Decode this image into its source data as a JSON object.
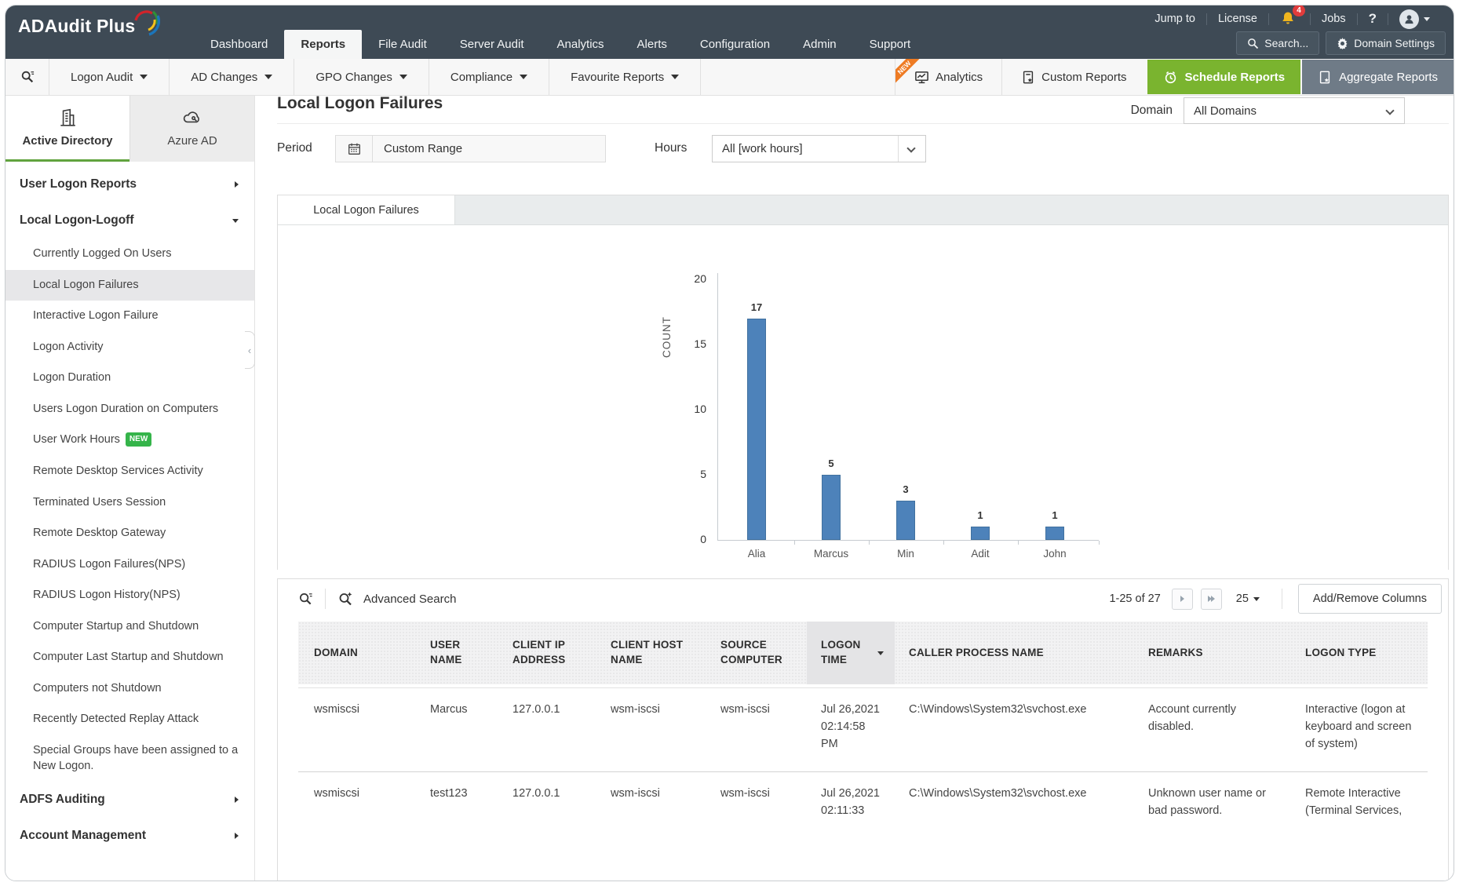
{
  "topbar": {
    "brand": "ADAudit Plus",
    "jump_to": "Jump to",
    "license": "License",
    "bell_badge": "4",
    "jobs": "Jobs",
    "help": "?",
    "nav": [
      {
        "label": "Dashboard",
        "active": false
      },
      {
        "label": "Reports",
        "active": true
      },
      {
        "label": "File Audit",
        "active": false
      },
      {
        "label": "Server Audit",
        "active": false
      },
      {
        "label": "Analytics",
        "active": false
      },
      {
        "label": "Alerts",
        "active": false
      },
      {
        "label": "Configuration",
        "active": false
      },
      {
        "label": "Admin",
        "active": false
      },
      {
        "label": "Support",
        "active": false
      }
    ],
    "search_label": "Search...",
    "domain_settings_label": "Domain Settings"
  },
  "report_toolbar": {
    "menus": [
      "Logon Audit",
      "AD Changes",
      "GPO Changes",
      "Compliance",
      "Favourite Reports"
    ],
    "analytics_badge": "NEW",
    "analytics_label": "Analytics",
    "custom_reports_label": "Custom Reports",
    "schedule_reports_label": "Schedule Reports",
    "aggregate_reports_label": "Aggregate Reports"
  },
  "sidebar": {
    "tabs": [
      {
        "label": "Active Directory",
        "active": true
      },
      {
        "label": "Azure AD",
        "active": false
      }
    ],
    "items": [
      {
        "label": "User Logon Reports",
        "type": "parent",
        "arrow": "right"
      },
      {
        "label": "Local Logon-Logoff",
        "type": "parent",
        "arrow": "down"
      },
      {
        "label": "Currently Logged On Users",
        "type": "child"
      },
      {
        "label": "Local Logon Failures",
        "type": "child",
        "selected": true
      },
      {
        "label": "Interactive Logon Failure",
        "type": "child"
      },
      {
        "label": "Logon Activity",
        "type": "child"
      },
      {
        "label": "Logon Duration",
        "type": "child"
      },
      {
        "label": "Users Logon Duration on Computers",
        "type": "child"
      },
      {
        "label": "User Work Hours",
        "type": "child",
        "badge": "NEW"
      },
      {
        "label": "Remote Desktop Services Activity",
        "type": "child"
      },
      {
        "label": "Terminated Users Session",
        "type": "child"
      },
      {
        "label": "Remote Desktop Gateway",
        "type": "child"
      },
      {
        "label": "RADIUS Logon Failures(NPS)",
        "type": "child"
      },
      {
        "label": "RADIUS Logon History(NPS)",
        "type": "child"
      },
      {
        "label": "Computer Startup and Shutdown",
        "type": "child"
      },
      {
        "label": "Computer Last Startup and Shutdown",
        "type": "child"
      },
      {
        "label": "Computers not Shutdown",
        "type": "child"
      },
      {
        "label": "Recently Detected Replay Attack",
        "type": "child"
      },
      {
        "label": "Special Groups have been assigned to a New Logon.",
        "type": "child"
      },
      {
        "label": "ADFS Auditing",
        "type": "parent",
        "arrow": "right"
      },
      {
        "label": "Account Management",
        "type": "parent",
        "arrow": "right"
      }
    ]
  },
  "report": {
    "title": "Local Logon Failures",
    "domain_label": "Domain",
    "domain_value": "All Domains",
    "period_label": "Period",
    "period_value": "Custom Range",
    "hours_label": "Hours",
    "hours_value": "All [work hours]",
    "chart_tab": "Local Logon Failures"
  },
  "chart_data": {
    "type": "bar",
    "title": "",
    "categories": [
      "Alia",
      "Marcus",
      "Min",
      "Adit",
      "John"
    ],
    "values": [
      17,
      5,
      3,
      1,
      1
    ],
    "xlabel": "",
    "ylabel": "COUNT",
    "ylim": [
      0,
      20
    ],
    "ytick_step": 5,
    "grid": false,
    "legend": false,
    "bar_color": "#4d82ba"
  },
  "table": {
    "advanced_search_label": "Advanced Search",
    "pagination": {
      "range": "1-25 of 27",
      "page_size": "25"
    },
    "add_remove_label": "Add/Remove Columns",
    "sorted_column": "LOGON TIME",
    "columns": [
      "DOMAIN",
      "USER NAME",
      "CLIENT IP ADDRESS",
      "CLIENT HOST NAME",
      "SOURCE COMPUTER",
      "LOGON TIME",
      "CALLER PROCESS NAME",
      "REMARKS",
      "LOGON TYPE"
    ],
    "rows": [
      [
        "wsmiscsi",
        "Marcus",
        "127.0.0.1",
        "wsm-iscsi",
        "wsm-iscsi",
        "Jul 26,2021 02:14:58 PM",
        "C:\\Windows\\System32\\svchost.exe",
        "Account currently disabled.",
        "Interactive (logon at keyboard and screen of system)"
      ],
      [
        "wsmiscsi",
        "test123",
        "127.0.0.1",
        "wsm-iscsi",
        "wsm-iscsi",
        "Jul 26,2021 02:11:33",
        "C:\\Windows\\System32\\svchost.exe",
        "Unknown user name or bad password.",
        "Remote Interactive (Terminal Services,"
      ]
    ]
  }
}
